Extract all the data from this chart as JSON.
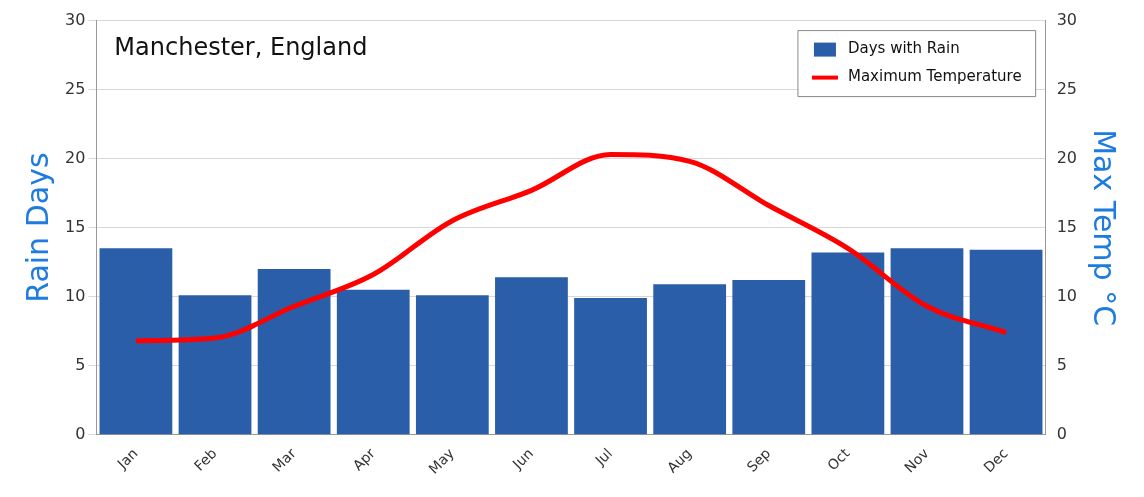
{
  "chart_data": {
    "type": "bar",
    "title": "Manchester, England",
    "ylabel": "Rain Days",
    "y2label": "Max Temp °C",
    "categories": [
      "Jan",
      "Feb",
      "Mar",
      "Apr",
      "May",
      "Jun",
      "Jul",
      "Aug",
      "Sep",
      "Oct",
      "Nov",
      "Dec"
    ],
    "series": [
      {
        "name": "Days with Rain",
        "color": "#2a5ea8",
        "values": [
          13.5,
          10.1,
          12.0,
          10.5,
          10.1,
          11.4,
          9.9,
          10.9,
          11.2,
          13.2,
          13.5,
          13.4
        ]
      },
      {
        "name": "Maximum Temperature",
        "type": "line",
        "axis": "y2",
        "color": "#ff0000",
        "values": [
          6.8,
          7.0,
          9.3,
          11.6,
          15.5,
          17.7,
          20.3,
          19.8,
          16.6,
          13.5,
          9.3,
          7.4
        ]
      }
    ],
    "ylim": [
      0,
      30
    ],
    "yticks": [
      0,
      5,
      10,
      15,
      20,
      25,
      30
    ],
    "y2lim": [
      0,
      30
    ],
    "y2ticks": [
      0,
      5,
      10,
      15,
      20,
      25,
      30
    ],
    "grid": "y",
    "legend": "top right",
    "marker": "none",
    "line_style": "solid"
  }
}
